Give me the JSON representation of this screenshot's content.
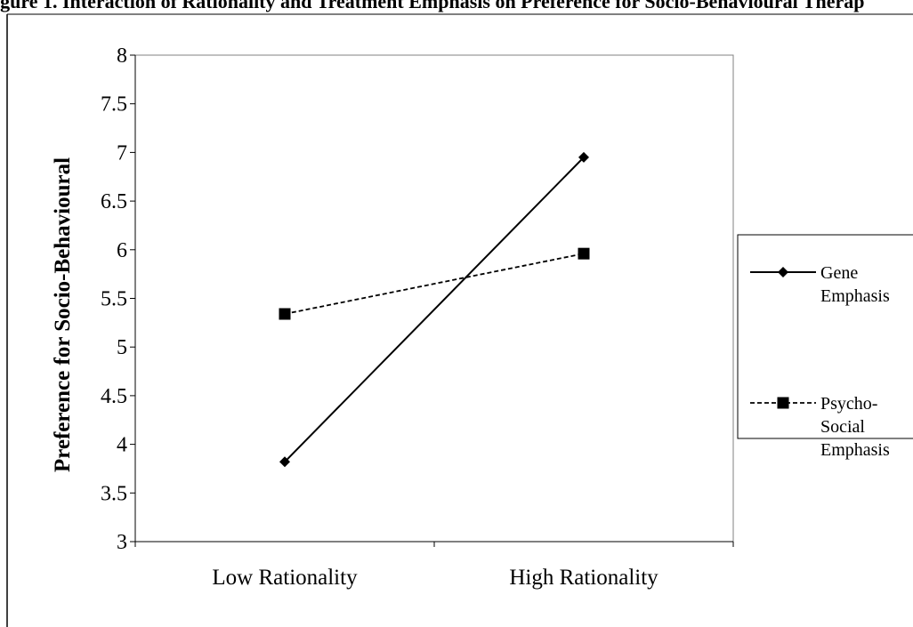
{
  "top_caption": "igure 1. Interaction of Rationality and Treatment Emphasis on Preference for Socio-Behavioural Therap",
  "chart_data": {
    "type": "line",
    "title": "",
    "xlabel": "",
    "ylabel": "Preference for Socio-Behavioural",
    "categories": [
      "Low Rationality",
      "High Rationality"
    ],
    "ylim": [
      3,
      8
    ],
    "yticks": [
      "8",
      "7.5",
      "7",
      "6.5",
      "6",
      "5.5",
      "5",
      "4.5",
      "4",
      "3.5",
      "3"
    ],
    "grid": false,
    "legend_position": "right",
    "series": [
      {
        "name_lines": [
          "Gene",
          "Emphasis"
        ],
        "values": [
          3.82,
          6.95
        ],
        "line_style": "solid",
        "marker": "diamond",
        "color": "#000000"
      },
      {
        "name_lines": [
          "Psycho-",
          "Social",
          "Emphasis"
        ],
        "values": [
          5.34,
          5.96
        ],
        "line_style": "dashed",
        "marker": "square",
        "color": "#000000"
      }
    ]
  }
}
